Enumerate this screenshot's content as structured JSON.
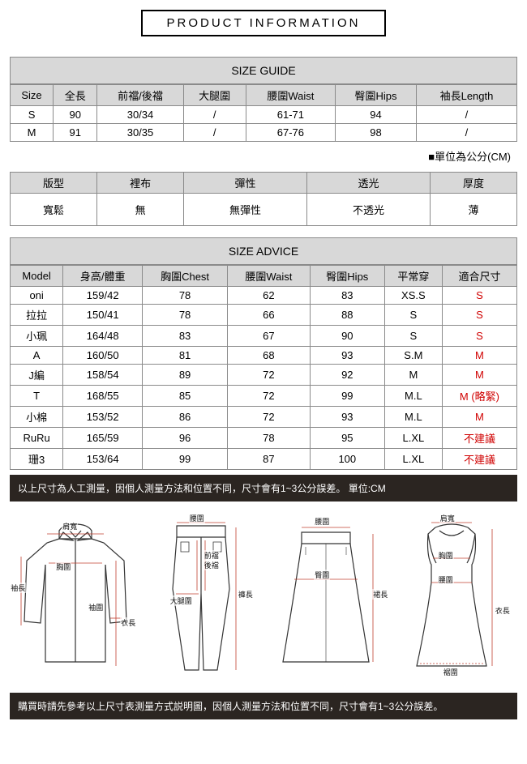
{
  "title": "PRODUCT INFORMATION",
  "sizeGuide": {
    "heading": "SIZE GUIDE",
    "columns": [
      "Size",
      "全長",
      "前襠/後襠",
      "大腿圍",
      "腰圍Waist",
      "臀圍Hips",
      "袖長Length"
    ],
    "rows": [
      [
        "S",
        "90",
        "30/34",
        "/",
        "61-71",
        "94",
        "/"
      ],
      [
        "M",
        "91",
        "30/35",
        "/",
        "67-76",
        "98",
        "/"
      ]
    ],
    "unitNote": "■單位為公分(CM)"
  },
  "attributes": {
    "headers": [
      "版型",
      "裡布",
      "彈性",
      "透光",
      "厚度"
    ],
    "values": [
      "寬鬆",
      "無",
      "無彈性",
      "不透光",
      "薄"
    ]
  },
  "sizeAdvice": {
    "heading": "SIZE ADVICE",
    "columns": [
      "Model",
      "身高/體重",
      "胸圍Chest",
      "腰圍Waist",
      "臀圍Hips",
      "平常穿",
      "適合尺寸"
    ],
    "rows": [
      {
        "cells": [
          "oni",
          "159/42",
          "78",
          "62",
          "83",
          "XS.S"
        ],
        "fit": "S",
        "fitRed": true
      },
      {
        "cells": [
          "拉拉",
          "150/41",
          "78",
          "66",
          "88",
          "S"
        ],
        "fit": "S",
        "fitRed": true
      },
      {
        "cells": [
          "小珮",
          "164/48",
          "83",
          "67",
          "90",
          "S"
        ],
        "fit": "S",
        "fitRed": true
      },
      {
        "cells": [
          "A",
          "160/50",
          "81",
          "68",
          "93",
          "S.M"
        ],
        "fit": "M",
        "fitRed": true
      },
      {
        "cells": [
          "J編",
          "158/54",
          "89",
          "72",
          "92",
          "M"
        ],
        "fit": "M",
        "fitRed": true
      },
      {
        "cells": [
          "T",
          "168/55",
          "85",
          "72",
          "99",
          "M.L"
        ],
        "fit": "M (略緊)",
        "fitRed": true
      },
      {
        "cells": [
          "小棉",
          "153/52",
          "86",
          "72",
          "93",
          "M.L"
        ],
        "fit": "M",
        "fitRed": true
      },
      {
        "cells": [
          "RuRu",
          "165/59",
          "96",
          "78",
          "95",
          "L.XL"
        ],
        "fit": "不建議",
        "fitRed": true
      },
      {
        "cells": [
          "珊3",
          "153/64",
          "99",
          "87",
          "100",
          "L.XL"
        ],
        "fit": "不建議",
        "fitRed": true
      }
    ]
  },
  "bands": {
    "top": "以上尺寸為人工測量，因個人測量方法和位置不同，尺寸會有1~3公分誤差。 單位:CM",
    "bottom": "購買時請先參考以上尺寸表測量方式説明圖，因個人測量方法和位置不同，尺寸會有1~3公分誤差。"
  },
  "diagramLabels": {
    "shirt": {
      "shoulder": "肩寬",
      "chest": "胸圍",
      "sleeve": "袖長",
      "cuff": "袖圍",
      "length": "衣長"
    },
    "pants": {
      "waist": "腰圍",
      "frontRise": "前襠",
      "backRise": "後襠",
      "thigh": "大腿圍",
      "pantLen": "褲長"
    },
    "skirt": {
      "waist": "腰圍",
      "hip": "臀圍",
      "skirtLen": "裙長"
    },
    "dress": {
      "shoulder": "肩寬",
      "chest": "胸圍",
      "waist": "腰圍",
      "length": "衣長",
      "hem": "裾圍"
    }
  },
  "style": {
    "border_color": "#8a8a8a",
    "header_bg": "#d8d8d8",
    "band_bg": "#2b2521",
    "band_text": "#ffffff",
    "red": "#d00000",
    "line_color": "#333333",
    "guide_line": "#c04030"
  }
}
